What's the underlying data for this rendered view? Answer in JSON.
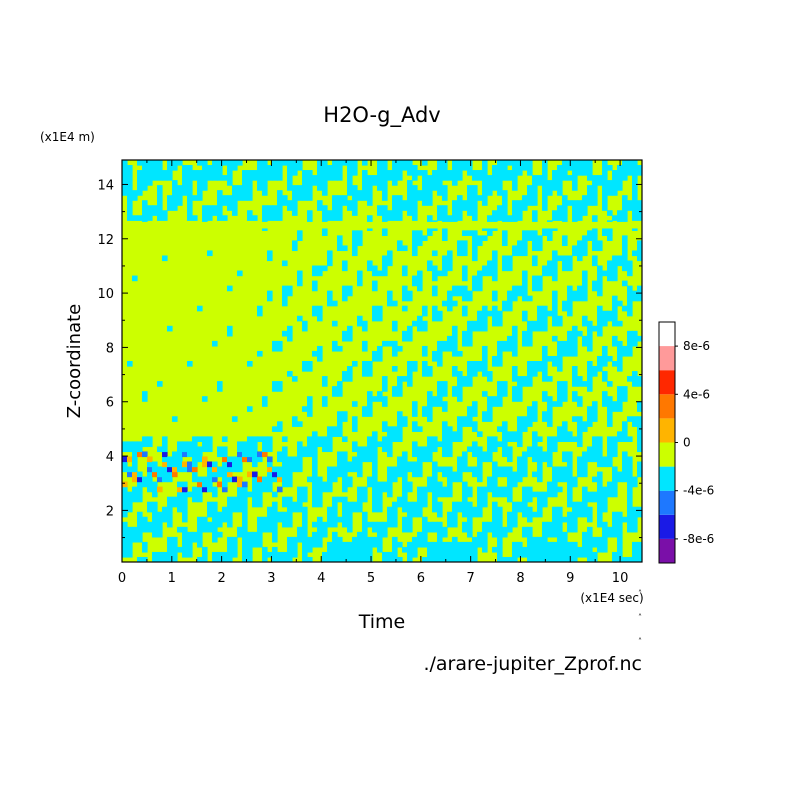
{
  "chart_data": {
    "type": "heatmap",
    "title": "H2O-g_Adv",
    "xlabel": "Time",
    "ylabel": "Z-coordinate",
    "x_unit_label": "(x1E4 sec)",
    "y_unit_label": "(x1E4 m)",
    "source_label": "./arare-jupiter_Zprof.nc",
    "xlim": [
      0,
      10.44
    ],
    "ylim": [
      0.1,
      14.9
    ],
    "x_ticks": [
      0,
      1,
      2,
      3,
      4,
      5,
      6,
      7,
      8,
      9,
      10
    ],
    "x_tick_labels": [
      "0",
      "1",
      "2",
      "3",
      "4",
      "5",
      "6",
      "7",
      "8",
      "9",
      "10"
    ],
    "y_ticks": [
      2,
      4,
      6,
      8,
      10,
      12,
      14
    ],
    "y_tick_labels": [
      "2",
      "4",
      "6",
      "8",
      "10",
      "12",
      "14"
    ],
    "colorbar": {
      "levels": [
        -1e-05,
        -8e-06,
        -6e-06,
        -4e-06,
        -2e-06,
        0,
        2e-06,
        4e-06,
        6e-06,
        8e-06,
        1e-05
      ],
      "colors": [
        "#7a0fa8",
        "#1a1ae6",
        "#1e78ff",
        "#00e6ff",
        "#ccff00",
        "#ffb400",
        "#ff7800",
        "#ff2800",
        "#ff9a9a"
      ],
      "tick_values": [
        -8e-06,
        -4e-06,
        0,
        4e-06,
        8e-06
      ],
      "tick_labels": [
        "-8e-6",
        "-4e-6",
        "0",
        "4e-6",
        "8e-6"
      ]
    },
    "grid": false,
    "legend": "colorbar right"
  }
}
